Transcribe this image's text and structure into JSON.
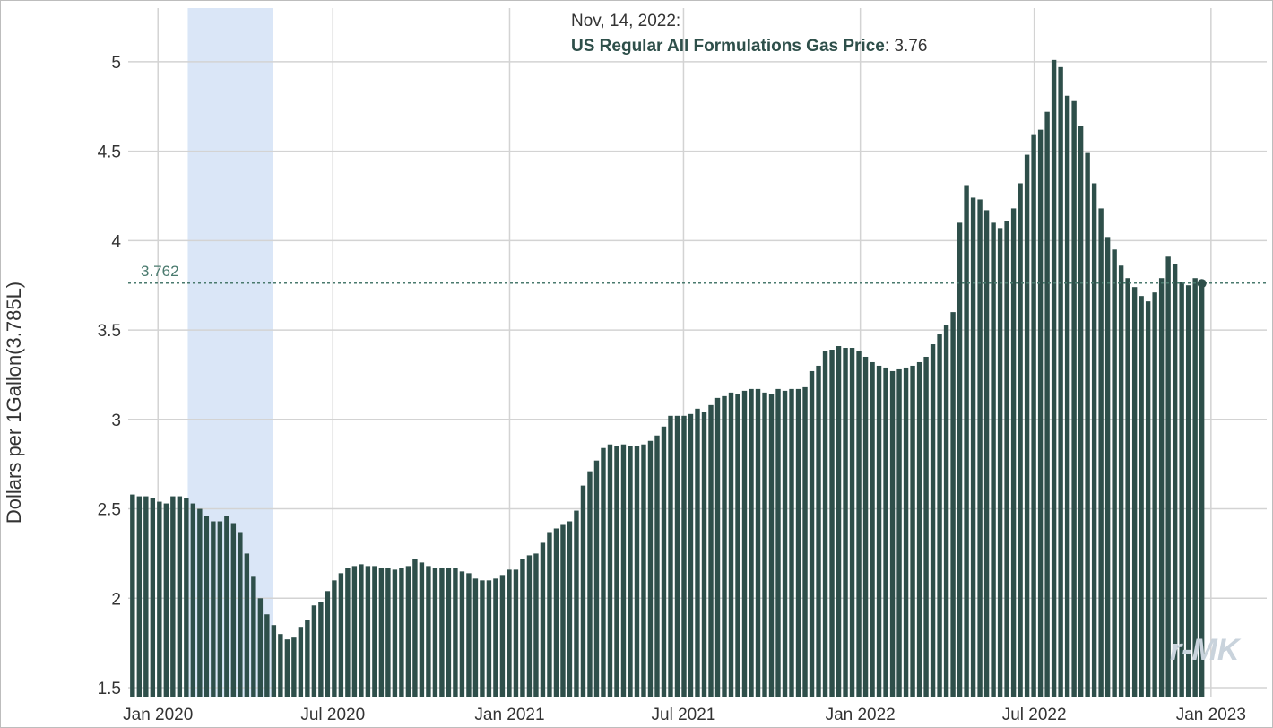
{
  "chart_data": {
    "type": "bar",
    "ylabel": "Dollars per 1Gallon(3.785L)",
    "ylim": [
      1.45,
      5.3
    ],
    "yticks": [
      1.5,
      2,
      2.5,
      3,
      3.5,
      4,
      4.5,
      5
    ],
    "xlim": [
      "2019-12-01",
      "2023-02-28"
    ],
    "xticks": [
      {
        "date": "2020-01-01",
        "label": "Jan 2020"
      },
      {
        "date": "2020-07-01",
        "label": "Jul 2020"
      },
      {
        "date": "2021-01-01",
        "label": "Jan 2021"
      },
      {
        "date": "2021-07-01",
        "label": "Jul 2021"
      },
      {
        "date": "2022-01-01",
        "label": "Jan 2022"
      },
      {
        "date": "2022-07-01",
        "label": "Jul 2022"
      },
      {
        "date": "2023-01-01",
        "label": "Jan 2023"
      }
    ],
    "grid": true,
    "bar_color": "#2e4f4a",
    "recession_band": {
      "start": "2020-02-01",
      "end": "2020-04-30",
      "color": "#dae6f7"
    },
    "reference_line": {
      "value": 3.762,
      "label": "3.762",
      "color": "#4a7a6e"
    },
    "tooltip": {
      "date": "Nov, 14, 2022:",
      "series": "US Regular All Formulations Gas Price",
      "value": ": 3.76"
    },
    "series": [
      {
        "start_date": "2019-12-02",
        "frequency": "weekly",
        "values": [
          2.58,
          2.57,
          2.57,
          2.56,
          2.54,
          2.53,
          2.57,
          2.57,
          2.56,
          2.53,
          2.5,
          2.46,
          2.43,
          2.43,
          2.46,
          2.42,
          2.37,
          2.25,
          2.12,
          2.0,
          1.91,
          1.85,
          1.8,
          1.77,
          1.78,
          1.84,
          1.88,
          1.96,
          1.98,
          2.04,
          2.1,
          2.14,
          2.17,
          2.18,
          2.19,
          2.18,
          2.18,
          2.17,
          2.17,
          2.16,
          2.17,
          2.18,
          2.22,
          2.2,
          2.18,
          2.17,
          2.17,
          2.17,
          2.17,
          2.15,
          2.14,
          2.11,
          2.1,
          2.1,
          2.11,
          2.13,
          2.16,
          2.16,
          2.22,
          2.24,
          2.25,
          2.31,
          2.37,
          2.39,
          2.41,
          2.43,
          2.49,
          2.63,
          2.71,
          2.77,
          2.84,
          2.86,
          2.85,
          2.86,
          2.85,
          2.85,
          2.86,
          2.88,
          2.91,
          2.96,
          3.02,
          3.02,
          3.02,
          3.03,
          3.06,
          3.04,
          3.08,
          3.12,
          3.13,
          3.15,
          3.14,
          3.16,
          3.17,
          3.17,
          3.15,
          3.14,
          3.17,
          3.16,
          3.17,
          3.17,
          3.18,
          3.27,
          3.3,
          3.38,
          3.39,
          3.41,
          3.4,
          3.4,
          3.38,
          3.35,
          3.32,
          3.3,
          3.29,
          3.27,
          3.28,
          3.29,
          3.3,
          3.32,
          3.35,
          3.42,
          3.48,
          3.53,
          3.6,
          4.1,
          4.31,
          4.24,
          4.23,
          4.17,
          4.1,
          4.07,
          4.11,
          4.18,
          4.32,
          4.48,
          4.59,
          4.62,
          4.72,
          5.01,
          4.97,
          4.81,
          4.78,
          4.64,
          4.49,
          4.32,
          4.18,
          4.02,
          3.95,
          3.86,
          3.79,
          3.74,
          3.69,
          3.66,
          3.71,
          3.79,
          3.91,
          3.87,
          3.77,
          3.75,
          3.79,
          3.76
        ]
      }
    ]
  },
  "watermark": "r-MK"
}
